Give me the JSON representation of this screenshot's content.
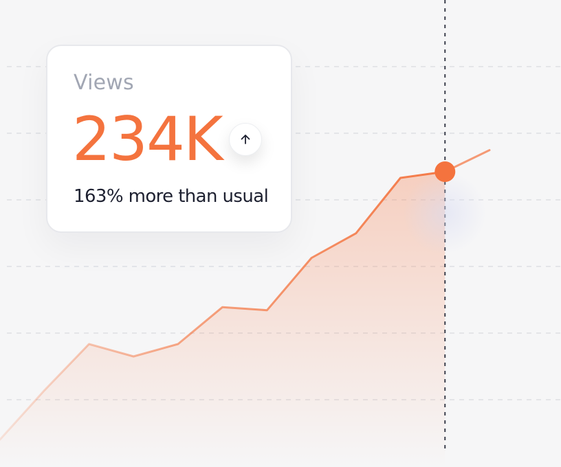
{
  "card": {
    "label": "Views",
    "value": "234K",
    "caption": "163% more than usual",
    "trend_icon": "arrow-up-icon",
    "value_color": "#f4733e"
  },
  "chart_data": {
    "type": "area",
    "title": "",
    "xlabel": "",
    "ylabel": "",
    "x": [
      0,
      1,
      2,
      3,
      4,
      5,
      6,
      7,
      8,
      9,
      10,
      11
    ],
    "series": [
      {
        "values": [
          0,
          16,
          31,
          27,
          31,
          43,
          42,
          59,
          67,
          85,
          87,
          94
        ],
        "color": "#f4733e"
      }
    ],
    "highlight_index": 10,
    "grid": true,
    "xlim": [
      0,
      11
    ],
    "ylim": [
      0,
      100
    ]
  }
}
